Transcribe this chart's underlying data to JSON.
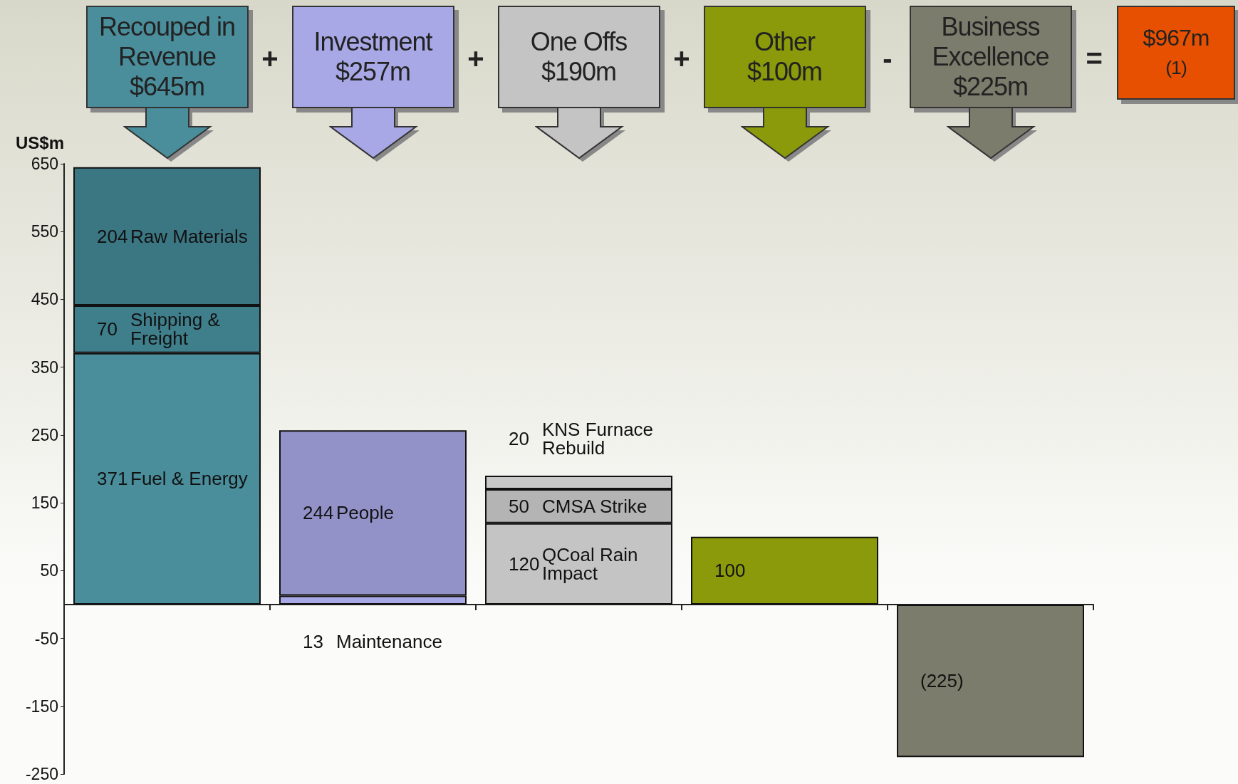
{
  "chart_data": {
    "type": "bar",
    "stacked": true,
    "ylabel": "US$m",
    "categories": [
      "Recouped in Revenue",
      "Investment",
      "One Offs",
      "Other",
      "Business Excellence"
    ],
    "series": [
      {
        "values": [
          371,
          13,
          120,
          100,
          -225
        ],
        "colors": [
          "#4a8e9c",
          "#a9a8e6",
          "#c4c4c4",
          "#8a9a0a",
          "#7c7c6c"
        ],
        "value_labels": [
          "371",
          "13",
          "120",
          "100",
          "(225)"
        ]
      },
      {
        "values": [
          70,
          244,
          50,
          null,
          null
        ],
        "colors": [
          "#3f7f8c",
          "#9392c8",
          "#b4b4b4",
          null,
          null
        ],
        "value_labels": [
          "70",
          "244",
          "50",
          null,
          null
        ]
      },
      {
        "values": [
          204,
          null,
          20,
          null,
          null
        ],
        "colors": [
          "#3b7683",
          null,
          "#c8c8c8",
          null,
          null
        ],
        "value_labels": [
          "204",
          null,
          "20",
          null,
          null
        ]
      }
    ],
    "ylim": [
      -250,
      650
    ],
    "yticks": [
      -250,
      -150,
      -50,
      50,
      150,
      250,
      350,
      450,
      550,
      650
    ],
    "annotations": [
      "$645m",
      "$257m",
      "$190m",
      "$100m",
      "$225m",
      "+",
      "+",
      "+",
      "-",
      "=",
      "$967m $^{(1)}$",
      "Fuel & Energy",
      "Shipping & Freight",
      "Raw Materials",
      "Maintenance",
      "People",
      "QCoal Rain Impact",
      "CMSA Strike",
      "KNS Furnace Rebuild"
    ]
  }
}
